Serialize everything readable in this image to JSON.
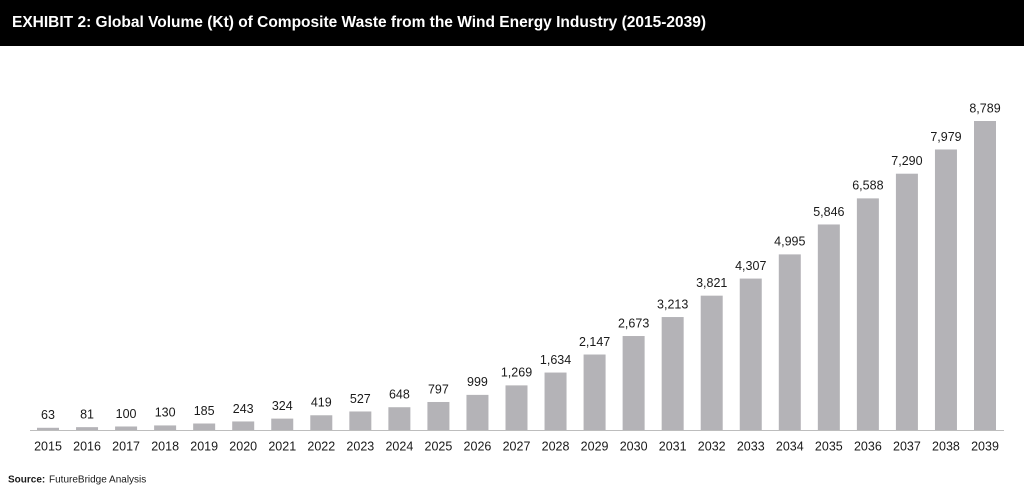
{
  "chart_data": {
    "type": "bar",
    "title": "EXHIBIT 2: Global Volume (Kt) of Composite Waste from the Wind Energy Industry (2015-2039)",
    "categories": [
      "2015",
      "2016",
      "2017",
      "2018",
      "2019",
      "2020",
      "2021",
      "2022",
      "2023",
      "2024",
      "2025",
      "2026",
      "2027",
      "2028",
      "2029",
      "2030",
      "2031",
      "2032",
      "2033",
      "2034",
      "2035",
      "2036",
      "2037",
      "2038",
      "2039"
    ],
    "values": [
      63,
      81,
      100,
      130,
      185,
      243,
      324,
      419,
      527,
      648,
      797,
      999,
      1269,
      1634,
      2147,
      2673,
      3213,
      3821,
      4307,
      4995,
      5846,
      6588,
      7290,
      7979,
      8789
    ],
    "value_labels": [
      "63",
      "81",
      "100",
      "130",
      "185",
      "243",
      "324",
      "419",
      "527",
      "648",
      "797",
      "999",
      "1,269",
      "1,634",
      "2,147",
      "2,673",
      "3,213",
      "3,821",
      "4,307",
      "4,995",
      "5,846",
      "6,588",
      "7,290",
      "7,979",
      "8,789"
    ],
    "color": "#b4b3b7",
    "source_label": "Source:",
    "source": "FutureBridge Analysis"
  }
}
